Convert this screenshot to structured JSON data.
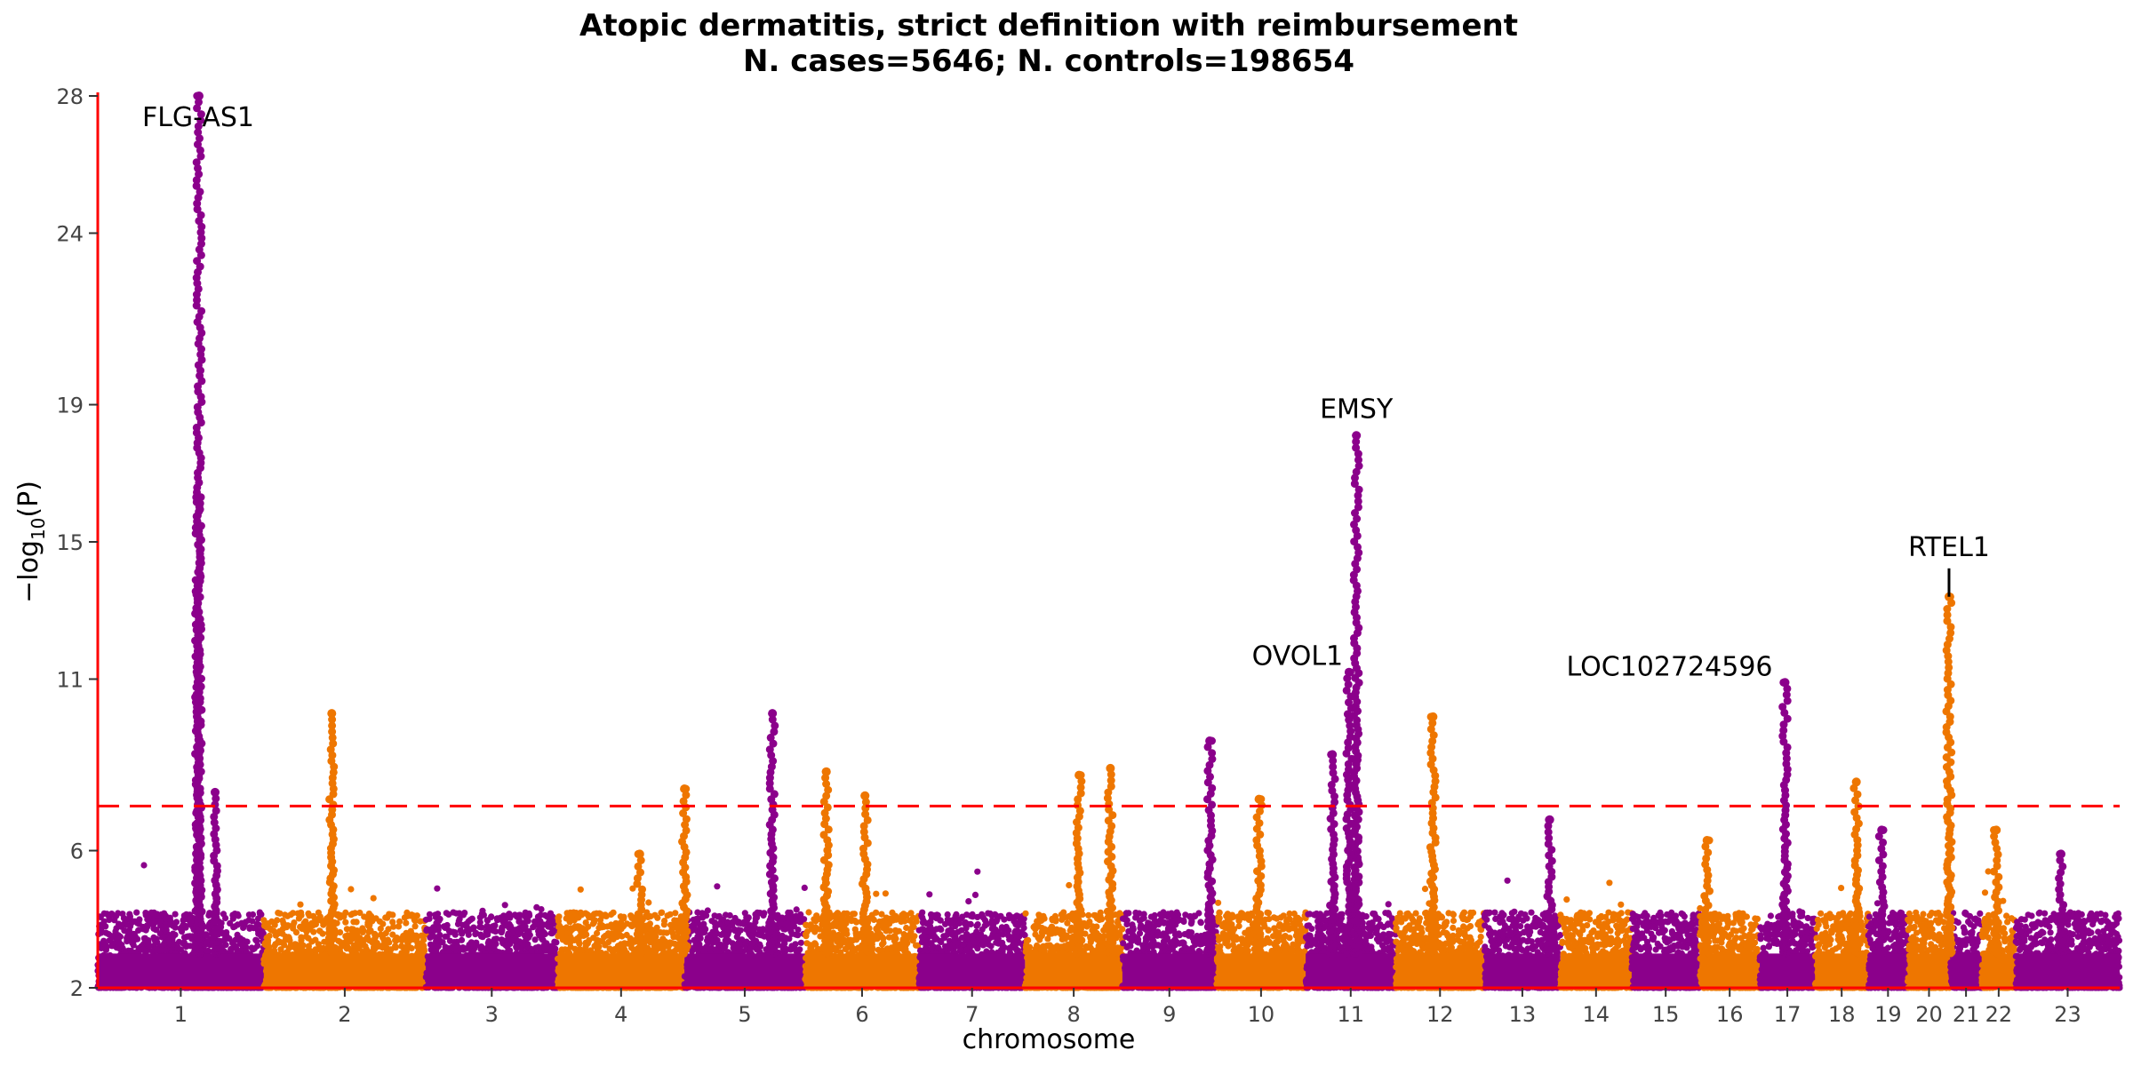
{
  "chart_data": {
    "type": "scatter",
    "subtype": "manhattan",
    "title": "Atopic dermatitis, strict definition with reimbursement",
    "subtitle": "N. cases=5646; N. controls=198654",
    "xlabel": "chromosome",
    "ylabel": "−log10(P)",
    "ylim": [
      2,
      28
    ],
    "y_ticks": [
      2,
      6,
      11,
      15,
      19,
      24,
      28
    ],
    "significance_threshold": 7.3,
    "colors": {
      "odd": "#8B008B",
      "even": "#EE7600",
      "threshold": "#FF0000",
      "axis": "#FF0000"
    },
    "grid": false,
    "chromosomes": [
      "1",
      "2",
      "3",
      "4",
      "5",
      "6",
      "7",
      "8",
      "9",
      "10",
      "11",
      "12",
      "13",
      "14",
      "15",
      "16",
      "17",
      "18",
      "19",
      "20",
      "21",
      "22",
      "23"
    ],
    "chromosome_sizes_mb": [
      249,
      243,
      198,
      190,
      181,
      171,
      159,
      146,
      141,
      134,
      135,
      133,
      114,
      107,
      102,
      90,
      83,
      80,
      59,
      64,
      47,
      51,
      156
    ],
    "peaks": [
      {
        "chrom": "1",
        "pos_mb": 152,
        "maxP": 28.0,
        "label": "FLG-AS1"
      },
      {
        "chrom": "1",
        "pos_mb": 150,
        "maxP": 16.3
      },
      {
        "chrom": "1",
        "pos_mb": 176,
        "maxP": 7.7
      },
      {
        "chrom": "2",
        "pos_mb": 102,
        "maxP": 10.0
      },
      {
        "chrom": "4",
        "pos_mb": 123,
        "maxP": 5.9
      },
      {
        "chrom": "4",
        "pos_mb": 190,
        "maxP": 7.8
      },
      {
        "chrom": "5",
        "pos_mb": 132,
        "maxP": 10.0
      },
      {
        "chrom": "6",
        "pos_mb": 32,
        "maxP": 8.3
      },
      {
        "chrom": "6",
        "pos_mb": 90,
        "maxP": 7.6
      },
      {
        "chrom": "8",
        "pos_mb": 81,
        "maxP": 8.2
      },
      {
        "chrom": "8",
        "pos_mb": 128,
        "maxP": 8.4
      },
      {
        "chrom": "9",
        "pos_mb": 131,
        "maxP": 9.2
      },
      {
        "chrom": "10",
        "pos_mb": 64,
        "maxP": 7.5
      },
      {
        "chrom": "11",
        "pos_mb": 65,
        "maxP": 11.2,
        "label": "OVOL1"
      },
      {
        "chrom": "11",
        "pos_mb": 76,
        "maxP": 18.1,
        "label": "EMSY"
      },
      {
        "chrom": "11",
        "pos_mb": 40,
        "maxP": 8.8
      },
      {
        "chrom": "12",
        "pos_mb": 56,
        "maxP": 9.9
      },
      {
        "chrom": "13",
        "pos_mb": 98,
        "maxP": 6.9
      },
      {
        "chrom": "16",
        "pos_mb": 11,
        "maxP": 6.3
      },
      {
        "chrom": "17",
        "pos_mb": 38,
        "maxP": 10.9,
        "label": "LOC102724596"
      },
      {
        "chrom": "18",
        "pos_mb": 62,
        "maxP": 8.0
      },
      {
        "chrom": "19",
        "pos_mb": 20,
        "maxP": 6.6
      },
      {
        "chrom": "20",
        "pos_mb": 62,
        "maxP": 13.4,
        "label": "RTEL1"
      },
      {
        "chrom": "22",
        "pos_mb": 22,
        "maxP": 6.6
      },
      {
        "chrom": "23",
        "pos_mb": 68,
        "maxP": 5.9
      }
    ]
  }
}
